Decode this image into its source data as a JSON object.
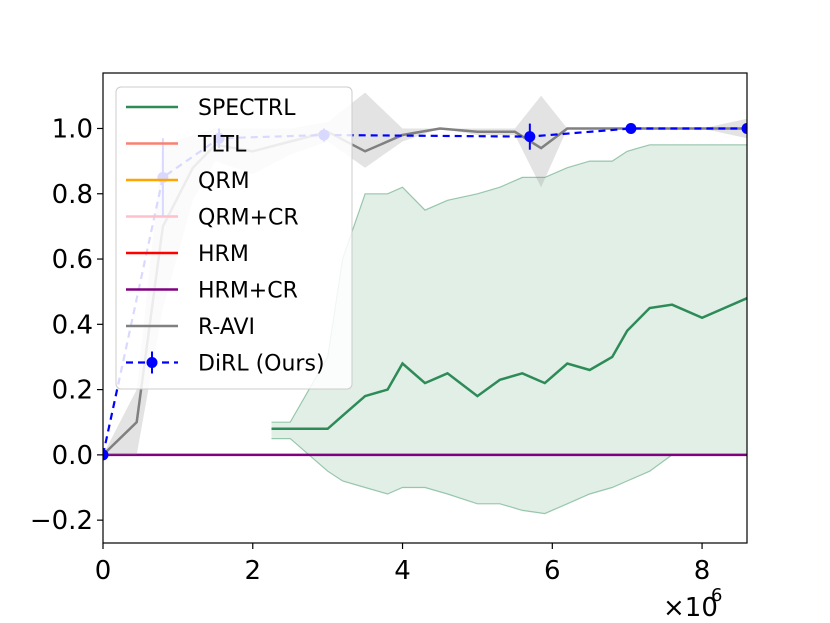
{
  "chart_data": {
    "type": "line",
    "x_multiplier_label": "×10",
    "x_multiplier_exponent": "6",
    "xlim": [
      0,
      8.6
    ],
    "ylim": [
      -0.27,
      1.17
    ],
    "x_ticks": [
      0,
      2,
      4,
      6,
      8
    ],
    "x_tick_labels": [
      "0",
      "2",
      "4",
      "6",
      "8"
    ],
    "y_ticks": [
      -0.2,
      0.0,
      0.2,
      0.4,
      0.6,
      0.8,
      1.0
    ],
    "y_tick_labels": [
      "−0.2",
      "0.0",
      "0.2",
      "0.4",
      "0.6",
      "0.8",
      "1.0"
    ],
    "grid": false,
    "legend_position": "upper-left",
    "legend": [
      {
        "label": "SPECTRL",
        "color": "#2e8b57",
        "style": "solid"
      },
      {
        "label": "TLTL",
        "color": "#fa8072",
        "style": "solid"
      },
      {
        "label": "QRM",
        "color": "#ffa500",
        "style": "solid"
      },
      {
        "label": "QRM+CR",
        "color": "#ffc0cb",
        "style": "solid"
      },
      {
        "label": "HRM",
        "color": "#ff0000",
        "style": "solid"
      },
      {
        "label": "HRM+CR",
        "color": "#800080",
        "style": "solid"
      },
      {
        "label": "R-AVI",
        "color": "#808080",
        "style": "solid"
      },
      {
        "label": "DiRL (Ours)",
        "color": "#0000ff",
        "style": "dashed-marker"
      }
    ],
    "series": [
      {
        "name": "SPECTRL",
        "color": "#2e8b57",
        "x": [
          2.25,
          2.5,
          3.0,
          3.2,
          3.5,
          3.8,
          4.0,
          4.3,
          4.6,
          5.0,
          5.3,
          5.6,
          5.9,
          6.2,
          6.5,
          6.8,
          7.0,
          7.3,
          7.6,
          8.0,
          8.3,
          8.6
        ],
        "y": [
          0.08,
          0.08,
          0.08,
          0.12,
          0.18,
          0.2,
          0.28,
          0.22,
          0.25,
          0.18,
          0.23,
          0.25,
          0.22,
          0.28,
          0.26,
          0.3,
          0.38,
          0.45,
          0.46,
          0.42,
          0.45,
          0.48
        ],
        "band_upper": [
          0.1,
          0.1,
          0.3,
          0.6,
          0.8,
          0.8,
          0.82,
          0.75,
          0.78,
          0.8,
          0.82,
          0.85,
          0.85,
          0.88,
          0.9,
          0.9,
          0.93,
          0.95,
          0.95,
          0.95,
          0.95,
          0.95
        ],
        "band_lower": [
          0.05,
          0.05,
          -0.05,
          -0.08,
          -0.1,
          -0.12,
          -0.1,
          -0.1,
          -0.12,
          -0.15,
          -0.15,
          -0.17,
          -0.18,
          -0.15,
          -0.12,
          -0.1,
          -0.08,
          -0.05,
          0.0,
          0.0,
          0.0,
          0.0
        ]
      },
      {
        "name": "HRM+CR",
        "color": "#800080",
        "x": [
          0,
          8.6
        ],
        "y": [
          0.0,
          0.0
        ]
      },
      {
        "name": "R-AVI",
        "color": "#808080",
        "x": [
          0,
          0.45,
          0.8,
          1.2,
          1.5,
          2.0,
          2.5,
          3.0,
          3.5,
          4.0,
          4.5,
          5.0,
          5.5,
          5.85,
          6.2,
          6.6,
          7.0,
          7.5,
          8.0,
          8.6
        ],
        "y": [
          0.0,
          0.1,
          0.7,
          0.88,
          0.95,
          0.93,
          0.96,
          0.99,
          0.93,
          0.98,
          1.0,
          0.99,
          0.99,
          0.94,
          1.0,
          1.0,
          1.0,
          1.0,
          1.0,
          1.0
        ],
        "band_upper": [
          0.0,
          0.2,
          0.95,
          0.98,
          1.0,
          1.0,
          1.0,
          1.02,
          1.11,
          1.0,
          1.0,
          1.0,
          1.0,
          1.1,
          1.0,
          1.0,
          1.0,
          1.0,
          1.0,
          1.03
        ],
        "band_lower": [
          0.0,
          0.0,
          0.45,
          0.78,
          0.9,
          0.86,
          0.92,
          0.96,
          0.88,
          0.96,
          1.0,
          0.98,
          0.98,
          0.82,
          1.0,
          1.0,
          1.0,
          1.0,
          1.0,
          0.97
        ]
      },
      {
        "name": "DiRL (Ours)",
        "color": "#0000ff",
        "x": [
          0,
          0.8,
          1.55,
          2.95,
          5.7,
          7.05,
          8.6
        ],
        "y": [
          0.0,
          0.85,
          0.97,
          0.98,
          0.975,
          1.0,
          1.0
        ],
        "err": [
          0.0,
          0.12,
          0.03,
          0.02,
          0.04,
          0.0,
          0.0
        ]
      }
    ]
  }
}
